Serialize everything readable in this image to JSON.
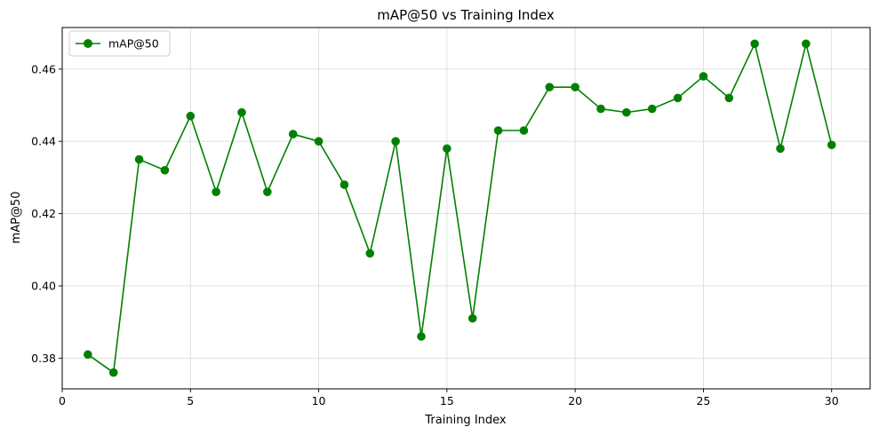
{
  "chart_data": {
    "type": "line",
    "title": "mAP@50 vs Training Index",
    "xlabel": "Training Index",
    "ylabel": "mAP@50",
    "xlim": [
      0,
      31.5
    ],
    "ylim": [
      0.3715,
      0.4715
    ],
    "xticks": [
      0,
      5,
      10,
      15,
      20,
      25,
      30
    ],
    "yticks": [
      0.38,
      0.4,
      0.42,
      0.44,
      0.46
    ],
    "ytick_labels": [
      "0.38",
      "0.40",
      "0.42",
      "0.44",
      "0.46"
    ],
    "grid": true,
    "legend_position": "top-left",
    "series": [
      {
        "name": "mAP@50",
        "color": "#008000",
        "marker": "circle",
        "x": [
          1,
          2,
          3,
          4,
          5,
          6,
          7,
          8,
          9,
          10,
          11,
          12,
          13,
          14,
          15,
          16,
          17,
          18,
          19,
          20,
          21,
          22,
          23,
          24,
          25,
          26,
          27,
          28,
          29,
          30
        ],
        "values": [
          0.381,
          0.376,
          0.435,
          0.432,
          0.447,
          0.426,
          0.448,
          0.426,
          0.442,
          0.44,
          0.428,
          0.409,
          0.44,
          0.386,
          0.438,
          0.391,
          0.443,
          0.443,
          0.455,
          0.455,
          0.449,
          0.448,
          0.449,
          0.452,
          0.458,
          0.452,
          0.467,
          0.438,
          0.467,
          0.439
        ]
      }
    ]
  }
}
